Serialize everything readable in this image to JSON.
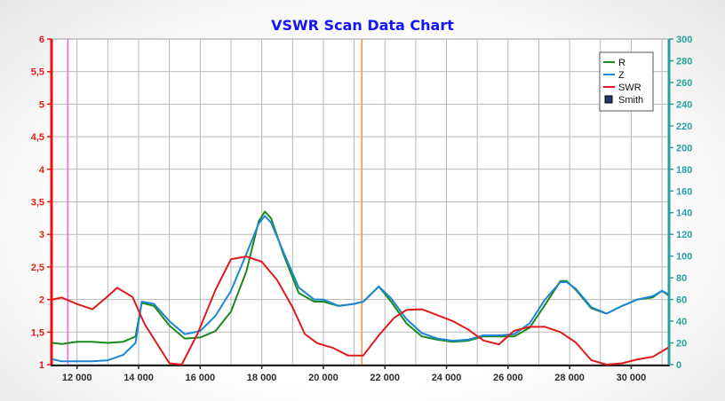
{
  "chart_data": {
    "type": "line",
    "title": "VSWR Scan Data Chart",
    "xlabel": "",
    "ylabel": "",
    "xlim": [
      11200,
      31200
    ],
    "ylim_left": [
      1,
      6
    ],
    "ylim_right": [
      0,
      300
    ],
    "grid": true,
    "legend_position": "top-right",
    "x_ticks": [
      12000,
      14000,
      16000,
      18000,
      20000,
      22000,
      24000,
      26000,
      28000,
      30000
    ],
    "x_tick_labels": [
      "12 000",
      "14 000",
      "16 000",
      "18 000",
      "20 000",
      "22 000",
      "24 000",
      "26 000",
      "28 000",
      "30 000"
    ],
    "y_left_ticks": [
      1,
      1.5,
      2,
      2.5,
      3,
      3.5,
      4,
      4.5,
      5,
      5.5,
      6
    ],
    "y_left_tick_labels": [
      "1",
      "1,5",
      "2",
      "2,5",
      "3",
      "3,5",
      "4",
      "4,5",
      "5",
      "5,5",
      "6"
    ],
    "y_right_ticks": [
      0,
      20,
      40,
      60,
      80,
      100,
      120,
      140,
      160,
      180,
      200,
      220,
      240,
      260,
      280,
      300
    ],
    "y_right_tick_labels": [
      "0",
      "20",
      "40",
      "60",
      "80",
      "100",
      "120",
      "140",
      "160",
      "180",
      "200",
      "220",
      "240",
      "260",
      "280",
      "300"
    ],
    "markers": [
      {
        "x": 11700,
        "color": "#ff55ff"
      },
      {
        "x": 21250,
        "color": "#ff8c3a"
      }
    ],
    "legend": [
      {
        "label": "R",
        "color": "#1a8a1a",
        "kind": "line"
      },
      {
        "label": "Z",
        "color": "#1f86d6",
        "kind": "line"
      },
      {
        "label": "SWR",
        "color": "#e01a1a",
        "kind": "line"
      },
      {
        "label": "Smith",
        "color": "#1f3a6a",
        "kind": "box"
      }
    ],
    "series": [
      {
        "name": "R",
        "axis": "right",
        "color": "#1a8a1a",
        "x": [
          11200,
          11500,
          12000,
          12500,
          13000,
          13500,
          13900,
          14100,
          14500,
          15000,
          15500,
          16000,
          16500,
          17000,
          17500,
          17900,
          18100,
          18300,
          18700,
          19200,
          19700,
          20000,
          20500,
          21000,
          21300,
          21800,
          22200,
          22700,
          23200,
          23700,
          24200,
          24700,
          25200,
          25700,
          26200,
          26700,
          27200,
          27700,
          27900,
          28200,
          28700,
          29200,
          29700,
          30200,
          30700,
          31000,
          31200
        ],
        "y": [
          20,
          19,
          21,
          21,
          20,
          21,
          26,
          57,
          54,
          36,
          24,
          25,
          31,
          49,
          86,
          132,
          141,
          135,
          102,
          66,
          58,
          58,
          54,
          56,
          58,
          72,
          58,
          38,
          26,
          23,
          21,
          22,
          26,
          26,
          26,
          34,
          55,
          77,
          77,
          69,
          52,
          47,
          54,
          60,
          62,
          68,
          64
        ]
      },
      {
        "name": "Z",
        "axis": "right",
        "color": "#1f86d6",
        "x": [
          11200,
          11500,
          12000,
          12500,
          13000,
          13500,
          13900,
          14100,
          14500,
          15000,
          15500,
          16000,
          16500,
          17000,
          17500,
          17900,
          18100,
          18300,
          18700,
          19200,
          19700,
          20000,
          20500,
          21000,
          21300,
          21800,
          22200,
          22700,
          23200,
          23700,
          24200,
          24700,
          25200,
          25700,
          26200,
          26700,
          27200,
          27700,
          27900,
          28200,
          28700,
          29200,
          29700,
          30200,
          30700,
          31000,
          31200
        ],
        "y": [
          5,
          3,
          3,
          3,
          4,
          9,
          20,
          58,
          56,
          40,
          28,
          31,
          45,
          68,
          102,
          130,
          137,
          131,
          104,
          71,
          60,
          60,
          54,
          56,
          58,
          72,
          61,
          42,
          29,
          24,
          22,
          23,
          27,
          27,
          28,
          38,
          60,
          76,
          76,
          70,
          53,
          47,
          54,
          60,
          63,
          68,
          65
        ]
      },
      {
        "name": "SWR",
        "axis": "left",
        "color": "#e01a1a",
        "x": [
          11200,
          11500,
          12000,
          12500,
          13000,
          13300,
          13800,
          14200,
          14600,
          15000,
          15400,
          15900,
          16500,
          17000,
          17500,
          18000,
          18500,
          19000,
          19400,
          19800,
          20300,
          20800,
          21300,
          21800,
          22300,
          22700,
          23200,
          23700,
          24200,
          24700,
          25200,
          25700,
          26200,
          26700,
          27200,
          27700,
          28200,
          28700,
          29200,
          29700,
          30200,
          30700,
          31200
        ],
        "y": [
          2.0,
          2.03,
          1.93,
          1.85,
          2.05,
          2.18,
          2.04,
          1.62,
          1.32,
          1.02,
          1.0,
          1.46,
          2.15,
          2.62,
          2.66,
          2.58,
          2.3,
          1.88,
          1.47,
          1.33,
          1.26,
          1.14,
          1.14,
          1.45,
          1.72,
          1.84,
          1.85,
          1.76,
          1.67,
          1.54,
          1.37,
          1.31,
          1.52,
          1.58,
          1.58,
          1.5,
          1.34,
          1.07,
          1.0,
          1.02,
          1.08,
          1.12,
          1.26
        ]
      }
    ]
  }
}
